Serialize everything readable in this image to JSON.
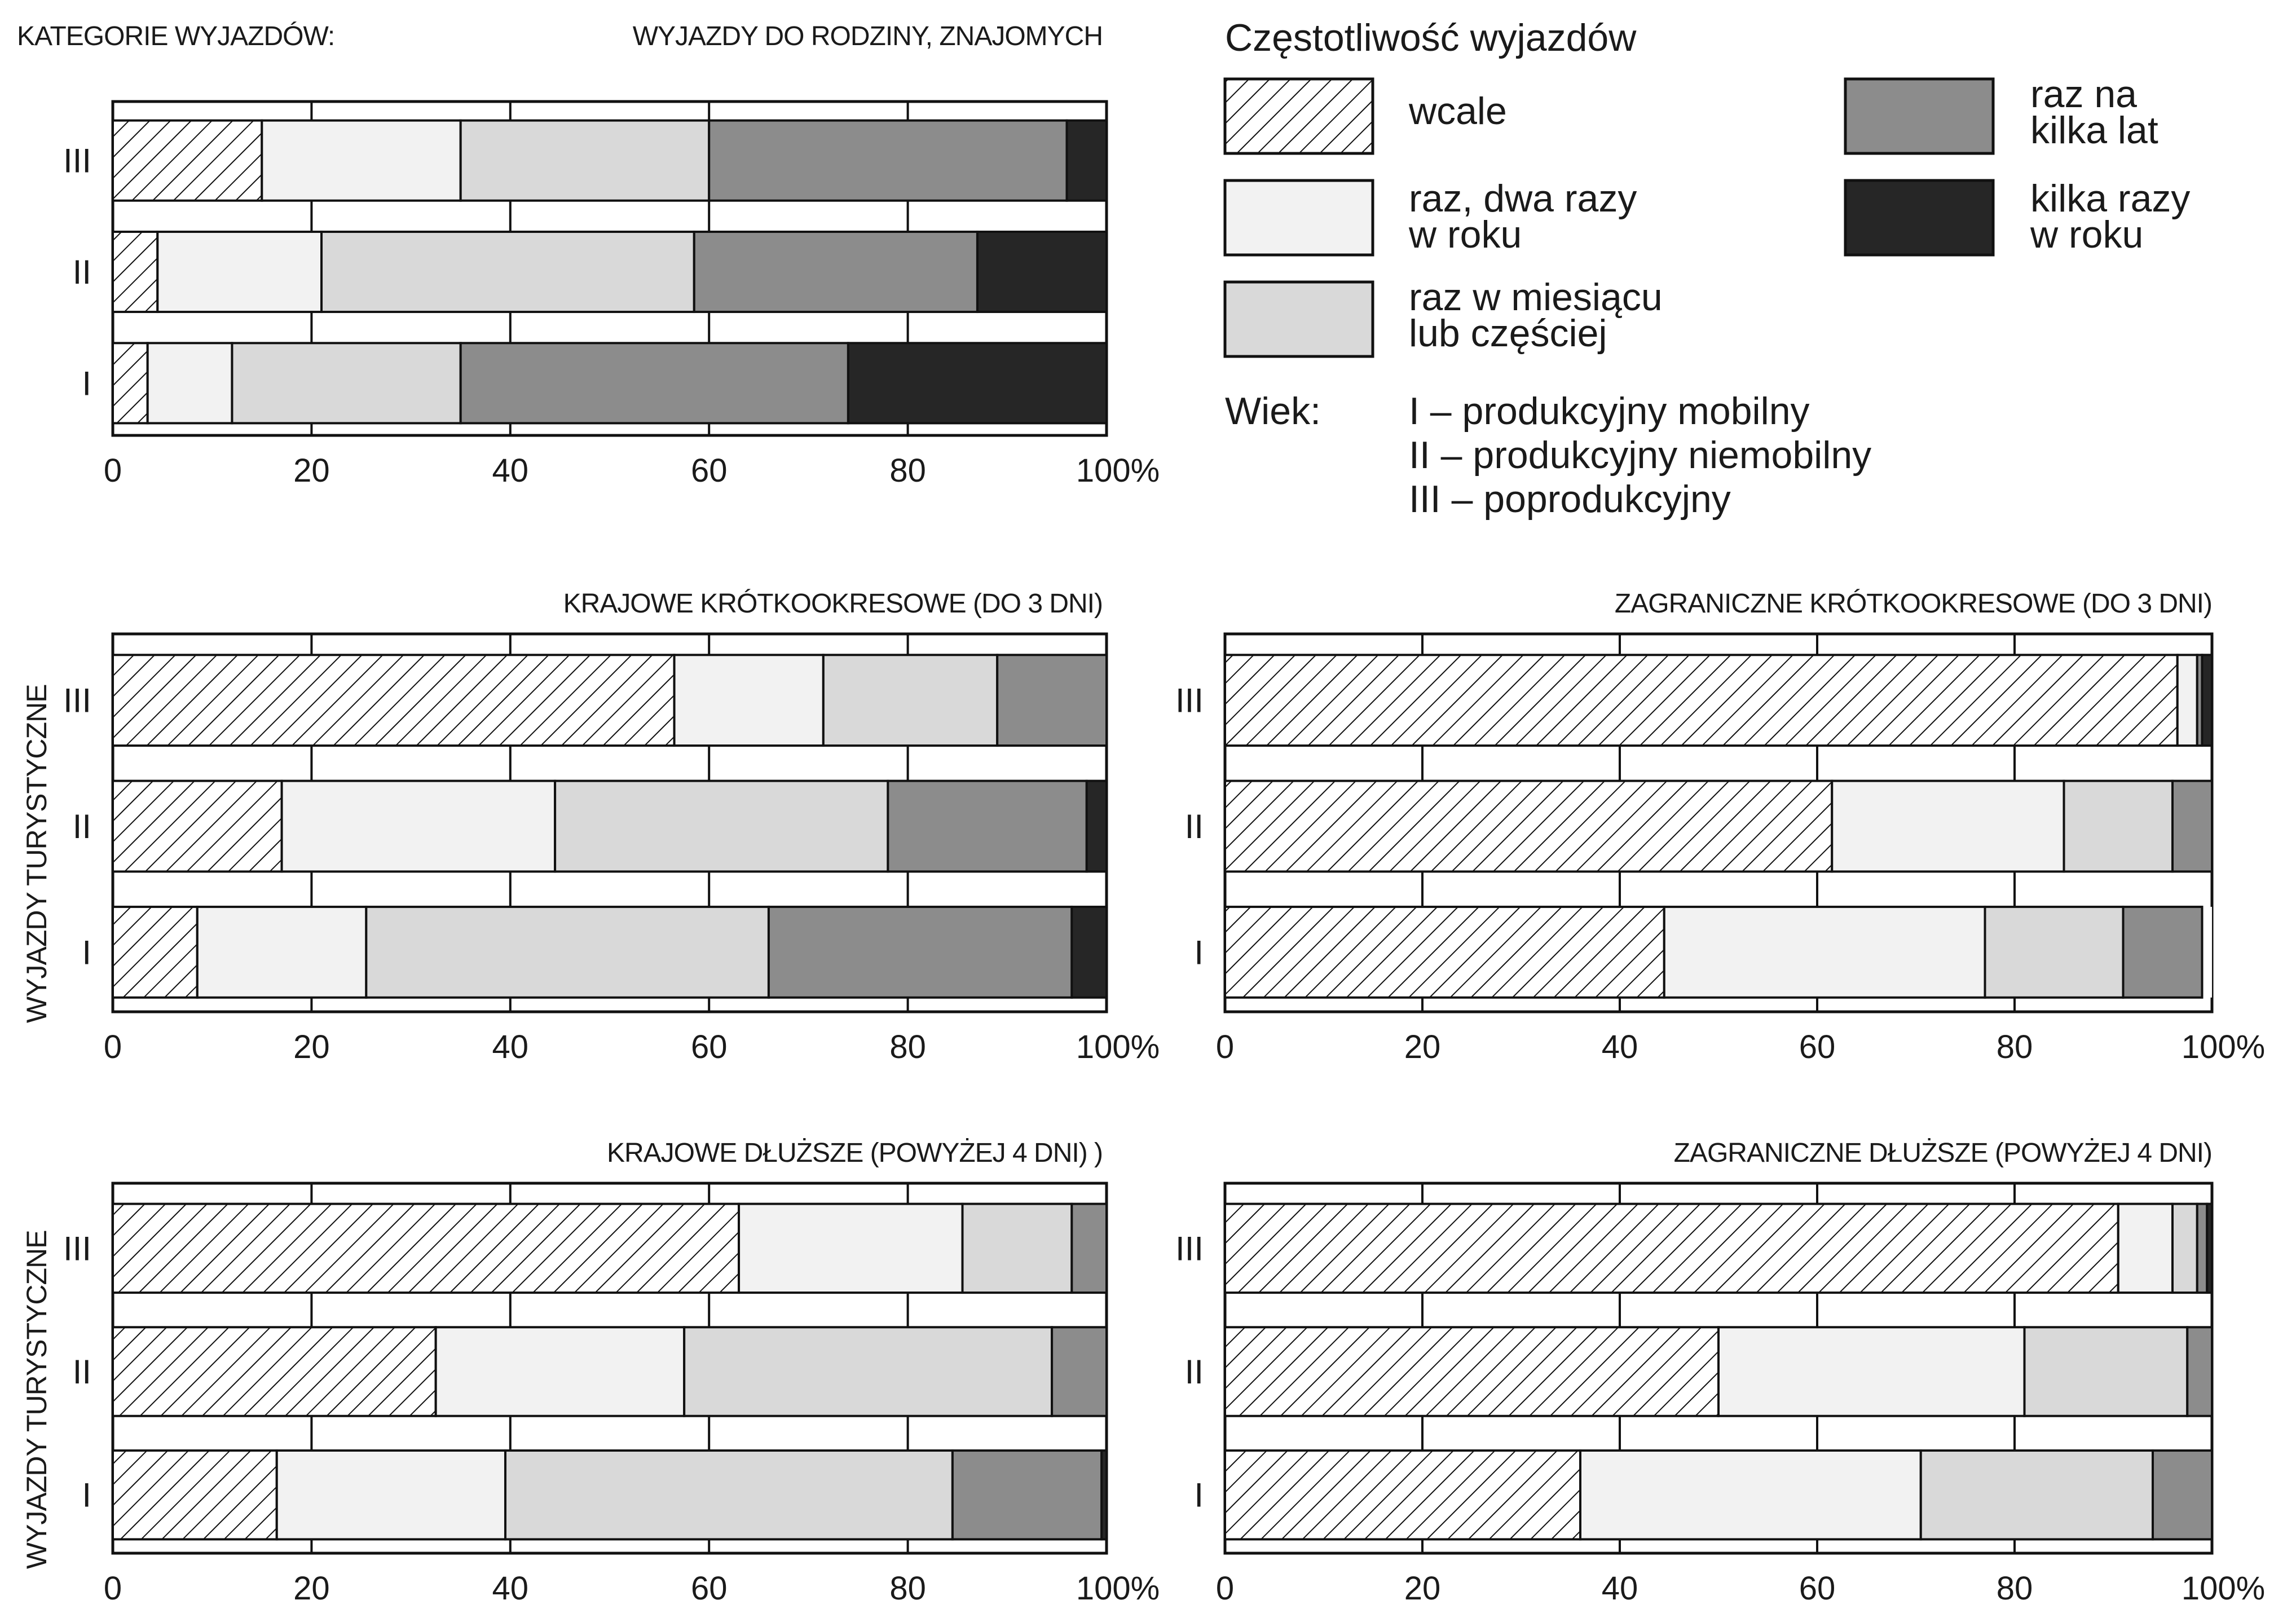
{
  "category_heading": "KATEGORIE WYJAZDÓW:",
  "side_label": "WYJAZDY TURYSTYCZNE",
  "legend": {
    "title": "Częstotliwość wyjazdów",
    "items": [
      {
        "key": "wcale",
        "lines": [
          "wcale"
        ],
        "fill": "hatch"
      },
      {
        "key": "raz_dwa",
        "lines": [
          "raz, dwa razy",
          "w roku"
        ],
        "fill": "#f2f2f2"
      },
      {
        "key": "miesiac",
        "lines": [
          "raz w miesiącu",
          "lub częściej"
        ],
        "fill": "#d9d9d9"
      },
      {
        "key": "kilka_lat",
        "lines": [
          "raz na",
          "kilka lat"
        ],
        "fill": "#8c8c8c"
      },
      {
        "key": "kilka_razy",
        "lines": [
          "kilka razy",
          "w roku"
        ],
        "fill": "#262626"
      }
    ],
    "age_title": "Wiek:",
    "age_lines": [
      "I – produkcyjny mobilny",
      "II – produkcyjny niemobilny",
      "III – poprodukcyjny"
    ]
  },
  "chart_data": [
    {
      "type": "bar",
      "stacked": true,
      "orientation": "horizontal",
      "title": "WYJAZDY DO RODZINY, ZNAJOMYCH",
      "categories": [
        "III",
        "II",
        "I"
      ],
      "x_ticks": [
        "0",
        "20",
        "40",
        "60",
        "80",
        "100%"
      ],
      "xlim": [
        0,
        100
      ],
      "series": [
        {
          "name": "wcale",
          "values": [
            15,
            4.5,
            3.5
          ]
        },
        {
          "name": "raz, dwa razy w roku",
          "values": [
            20,
            16.5,
            8.5
          ]
        },
        {
          "name": "raz w miesiącu lub częściej",
          "values": [
            25,
            37.5,
            23
          ]
        },
        {
          "name": "raz na kilka lat",
          "values": [
            36,
            28.5,
            39
          ]
        },
        {
          "name": "kilka razy w roku",
          "values": [
            4,
            13,
            26
          ]
        }
      ]
    },
    {
      "type": "bar",
      "stacked": true,
      "orientation": "horizontal",
      "title": "KRAJOWE KRÓTKOOKRESOWE (DO 3 DNI)",
      "categories": [
        "III",
        "II",
        "I"
      ],
      "x_ticks": [
        "0",
        "20",
        "40",
        "60",
        "80",
        "100%"
      ],
      "xlim": [
        0,
        100
      ],
      "series": [
        {
          "name": "wcale",
          "values": [
            56.5,
            17,
            8.5
          ]
        },
        {
          "name": "raz, dwa razy w roku",
          "values": [
            15,
            27.5,
            17
          ]
        },
        {
          "name": "raz w miesiącu lub częściej",
          "values": [
            17.5,
            33.5,
            40.5
          ]
        },
        {
          "name": "raz na kilka lat",
          "values": [
            11,
            20,
            30.5
          ]
        },
        {
          "name": "kilka razy w roku",
          "values": [
            0,
            2,
            3.5
          ]
        }
      ]
    },
    {
      "type": "bar",
      "stacked": true,
      "orientation": "horizontal",
      "title": "ZAGRANICZNE KRÓTKOOKRESOWE (DO 3 DNI)",
      "categories": [
        "III",
        "II",
        "I"
      ],
      "x_ticks": [
        "0",
        "20",
        "40",
        "60",
        "80",
        "100%"
      ],
      "xlim": [
        0,
        100
      ],
      "series": [
        {
          "name": "wcale",
          "values": [
            96.5,
            61.5,
            44.5
          ]
        },
        {
          "name": "raz, dwa razy w roku",
          "values": [
            2,
            23.5,
            32.5
          ]
        },
        {
          "name": "raz w miesiącu lub częściej",
          "values": [
            0,
            11,
            14
          ]
        },
        {
          "name": "raz na kilka lat",
          "values": [
            0.5,
            4,
            8
          ]
        },
        {
          "name": "kilka razy w roku",
          "values": [
            1,
            0,
            0
          ]
        }
      ]
    },
    {
      "type": "bar",
      "stacked": true,
      "orientation": "horizontal",
      "title": "KRAJOWE DŁUŻSZE (POWYŻEJ 4 DNI) )",
      "categories": [
        "III",
        "II",
        "I"
      ],
      "x_ticks": [
        "0",
        "20",
        "40",
        "60",
        "80",
        "100%"
      ],
      "xlim": [
        0,
        100
      ],
      "series": [
        {
          "name": "wcale",
          "values": [
            63,
            32.5,
            16.5
          ]
        },
        {
          "name": "raz, dwa razy w roku",
          "values": [
            22.5,
            25,
            23
          ]
        },
        {
          "name": "raz w miesiącu lub częściej",
          "values": [
            11,
            37,
            45
          ]
        },
        {
          "name": "raz na kilka lat",
          "values": [
            3.5,
            5.5,
            15
          ]
        },
        {
          "name": "kilka razy w roku",
          "values": [
            0,
            0,
            0.5
          ]
        }
      ]
    },
    {
      "type": "bar",
      "stacked": true,
      "orientation": "horizontal",
      "title": "ZAGRANICZNE DŁUŻSZE (POWYŻEJ 4 DNI)",
      "categories": [
        "III",
        "II",
        "I"
      ],
      "x_ticks": [
        "0",
        "20",
        "40",
        "60",
        "80",
        "100%"
      ],
      "xlim": [
        0,
        100
      ],
      "series": [
        {
          "name": "wcale",
          "values": [
            90.5,
            50,
            36
          ]
        },
        {
          "name": "raz, dwa razy w roku",
          "values": [
            5.5,
            31,
            34.5
          ]
        },
        {
          "name": "raz w miesiącu lub częściej",
          "values": [
            2.5,
            16.5,
            23.5
          ]
        },
        {
          "name": "raz na kilka lat",
          "values": [
            1,
            2.5,
            6
          ]
        },
        {
          "name": "kilka razy w roku",
          "values": [
            0.5,
            0,
            0
          ]
        }
      ]
    }
  ]
}
